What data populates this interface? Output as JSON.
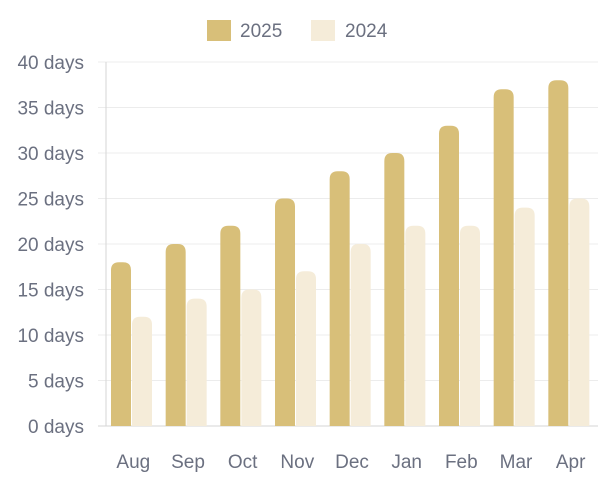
{
  "chart_data": {
    "type": "bar",
    "categories": [
      "Aug",
      "Sep",
      "Oct",
      "Nov",
      "Dec",
      "Jan",
      "Feb",
      "Mar",
      "Apr"
    ],
    "series": [
      {
        "name": "2025",
        "values": [
          18,
          20,
          22,
          25,
          28,
          30,
          33,
          37,
          38
        ],
        "color": "#d8bf79"
      },
      {
        "name": "2024",
        "values": [
          12,
          14,
          15,
          17,
          20,
          22,
          22,
          24,
          25
        ],
        "color": "#f5ecd9"
      }
    ],
    "y_ticks": [
      "0 days",
      "5 days",
      "10 days",
      "15 days",
      "20 days",
      "25 days",
      "30 days",
      "35 days",
      "40 days"
    ],
    "ylim": [
      0,
      40
    ],
    "y_step": 5,
    "grid": true,
    "legend_position": "top-center",
    "title": "",
    "xlabel": "",
    "ylabel": ""
  },
  "colors": {
    "grid": "#ececec",
    "axis": "#d6d6d6",
    "text": "#6b7080"
  }
}
